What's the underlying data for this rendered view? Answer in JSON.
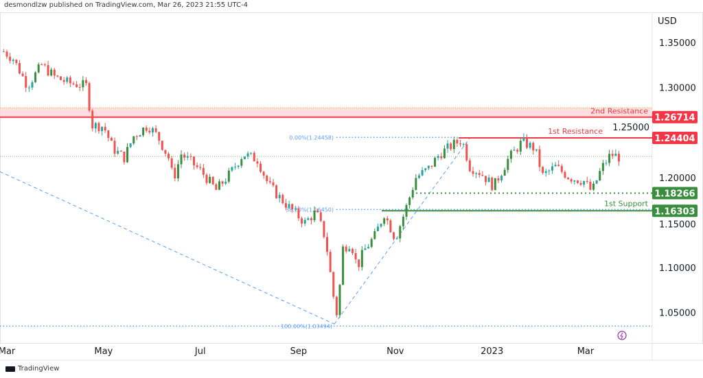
{
  "header": {
    "published": "desmondlzw published on TradingView.com, Mar 26, 2023 21:55 UTC-4"
  },
  "footer": {
    "logo": "TradingView"
  },
  "chart_data": {
    "type": "candlestick",
    "currency": "USD",
    "y_ticks": [
      "1.35000",
      "1.30000",
      "1.25000",
      "1.20000",
      "1.15000",
      "1.10000",
      "1.05000"
    ],
    "ylim": [
      1.03,
      1.38
    ],
    "x_ticks": [
      {
        "label": "Mar",
        "date": "2022-03-01"
      },
      {
        "label": "May",
        "date": "2022-05-01"
      },
      {
        "label": "Jul",
        "date": "2022-07-01"
      },
      {
        "label": "Sep",
        "date": "2022-09-01"
      },
      {
        "label": "Nov",
        "date": "2022-11-01"
      },
      {
        "label": "2023",
        "date": "2023-01-01"
      },
      {
        "label": "Mar",
        "date": "2023-03-01"
      }
    ],
    "price_path": [
      [
        "2022-02-27",
        1.34
      ],
      [
        "2022-03-05",
        1.332
      ],
      [
        "2022-03-14",
        1.302
      ],
      [
        "2022-03-23",
        1.325
      ],
      [
        "2022-03-31",
        1.312
      ],
      [
        "2022-04-09",
        1.305
      ],
      [
        "2022-04-20",
        1.302
      ],
      [
        "2022-04-24",
        1.258
      ],
      [
        "2022-05-01",
        1.257
      ],
      [
        "2022-05-07",
        1.232
      ],
      [
        "2022-05-14",
        1.222
      ],
      [
        "2022-05-20",
        1.246
      ],
      [
        "2022-05-29",
        1.258
      ],
      [
        "2022-06-04",
        1.246
      ],
      [
        "2022-06-11",
        1.222
      ],
      [
        "2022-06-14",
        1.198
      ],
      [
        "2022-06-19",
        1.226
      ],
      [
        "2022-06-26",
        1.216
      ],
      [
        "2022-07-02",
        1.206
      ],
      [
        "2022-07-11",
        1.186
      ],
      [
        "2022-07-20",
        1.205
      ],
      [
        "2022-07-28",
        1.226
      ],
      [
        "2022-08-06",
        1.22
      ],
      [
        "2022-08-13",
        1.192
      ],
      [
        "2022-08-21",
        1.176
      ],
      [
        "2022-08-30",
        1.16
      ],
      [
        "2022-09-05",
        1.15
      ],
      [
        "2022-09-12",
        1.162
      ],
      [
        "2022-09-18",
        1.132
      ],
      [
        "2022-09-23",
        1.068
      ],
      [
        "2022-09-26",
        1.04
      ],
      [
        "2022-09-28",
        1.12
      ],
      [
        "2022-10-04",
        1.128
      ],
      [
        "2022-10-08",
        1.1
      ],
      [
        "2022-10-12",
        1.118
      ],
      [
        "2022-10-19",
        1.135
      ],
      [
        "2022-10-25",
        1.16
      ],
      [
        "2022-11-01",
        1.132
      ],
      [
        "2022-11-07",
        1.162
      ],
      [
        "2022-11-14",
        1.2
      ],
      [
        "2022-11-22",
        1.21
      ],
      [
        "2022-11-29",
        1.226
      ],
      [
        "2022-12-07",
        1.236
      ],
      [
        "2022-12-13",
        1.242
      ],
      [
        "2022-12-18",
        1.212
      ],
      [
        "2022-12-25",
        1.205
      ],
      [
        "2023-01-02",
        1.19
      ],
      [
        "2023-01-11",
        1.22
      ],
      [
        "2023-01-20",
        1.24
      ],
      [
        "2023-01-28",
        1.232
      ],
      [
        "2023-02-02",
        1.202
      ],
      [
        "2023-02-10",
        1.212
      ],
      [
        "2023-02-19",
        1.2
      ],
      [
        "2023-02-28",
        1.196
      ],
      [
        "2023-03-05",
        1.184
      ],
      [
        "2023-03-11",
        1.21
      ],
      [
        "2023-03-17",
        1.226
      ],
      [
        "2023-03-23",
        1.222
      ]
    ],
    "last_price": 1.2235,
    "levels": [
      {
        "label": "2nd Resistance",
        "value": 1.26714,
        "tag": "1.26714",
        "zone_top": 1.2775,
        "color": "#f23645"
      },
      {
        "label": "1st Resistance",
        "value": 1.24404,
        "tag": "1.24404",
        "color": "#f23645"
      },
      {
        "label": "",
        "value": 1.18266,
        "tag": "1.18266",
        "color": "#388e3c"
      },
      {
        "label": "1st Support",
        "value": 1.16303,
        "tag": "1.16303",
        "color": "#388e3c"
      }
    ],
    "fib": [
      {
        "label": "0.00%(1.24458)",
        "value": 1.24458
      },
      {
        "label": "38.20%(1.16450)",
        "value": 1.1645
      },
      {
        "label": "100.00%(1.03494)",
        "value": 1.03494
      }
    ],
    "colors": {
      "up": "#26a69a",
      "up_strong": "#388e3c",
      "down": "#ef5350",
      "fib": "#5b9cf6"
    }
  }
}
